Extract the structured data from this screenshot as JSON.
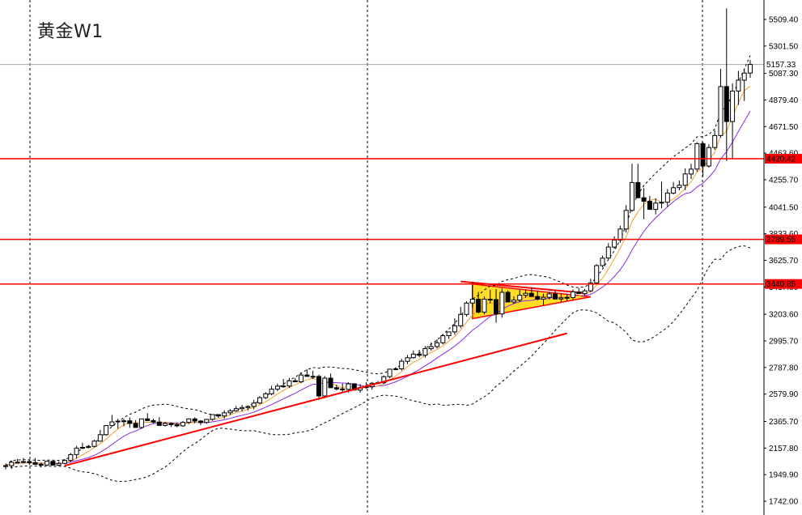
{
  "chart_data": {
    "type": "candlestick",
    "title": "黄金W1",
    "colors": {
      "background": "#ffffff",
      "candle_up_fill": "#ffffff",
      "candle_down_fill": "#000000",
      "candle_outline": "#000000",
      "ma_fast": "#f0a030",
      "ma_slow": "#8a2be2",
      "bollinger": "#000000",
      "horizontal_level": "#ff0000",
      "trendline": "#ff0000",
      "triangle_fill": "#ffd700",
      "current_price_line": "#a0a8b0"
    },
    "y_axis": {
      "ticks": [
        "5509.40",
        "5301.50",
        "5087.30",
        "4879.40",
        "4671.50",
        "4463.60",
        "4255.70",
        "4041.50",
        "3833.60",
        "3625.70",
        "3417.80",
        "3203.60",
        "2995.70",
        "2787.80",
        "2579.90",
        "2365.70",
        "2157.80",
        "1949.90",
        "1742.00"
      ],
      "range": [
        1742.0,
        5509.4
      ]
    },
    "current_price": "5157.33",
    "levels": [
      {
        "price": 4420.42,
        "label": "4420.42"
      },
      {
        "price": 3789.55,
        "label": "3789.55"
      },
      {
        "price": 3440.85,
        "label": "3440.85"
      }
    ],
    "grid": "vertical dashed separators only",
    "candles_ohlc": [
      [
        2018.6,
        2037.2,
        1991.2,
        2020.0
      ],
      [
        2020.0,
        2060.2,
        1994.1,
        2047.1
      ],
      [
        2047.1,
        2071.4,
        2040.7,
        2047.8
      ],
      [
        2047.8,
        2081.2,
        2037.0,
        2052.4
      ],
      [
        2052.4,
        2070.2,
        2026.3,
        2044.1
      ],
      [
        2044.1,
        2080.5,
        2031.5,
        2030.9
      ],
      [
        2030.9,
        2045.5,
        2006.3,
        2025.7
      ],
      [
        2025.7,
        2060.2,
        2018.3,
        2053.9
      ],
      [
        2053.9,
        2055.2,
        2030.4,
        2024.3
      ],
      [
        2024.3,
        2053.8,
        2018.4,
        2037.6
      ],
      [
        2037.6,
        2070.3,
        2030.4,
        2060.7
      ],
      [
        2060.7,
        2119.7,
        2047.9,
        2106.6
      ],
      [
        2106.6,
        2174.6,
        2077.8,
        2157.4
      ],
      [
        2157.4,
        2198.6,
        2150.4,
        2162.8
      ],
      [
        2162.8,
        2181.6,
        2154.7,
        2170.3
      ],
      [
        2170.3,
        2222.4,
        2163.4,
        2211.6
      ],
      [
        2211.6,
        2299.9,
        2208.8,
        2262.3
      ],
      [
        2262.3,
        2337.2,
        2253.6,
        2333.3
      ],
      [
        2333.3,
        2415.7,
        2325.5,
        2362.6
      ],
      [
        2362.6,
        2387.7,
        2310.0,
        2368.7
      ],
      [
        2368.7,
        2386.4,
        2328.1,
        2370.8
      ],
      [
        2370.8,
        2398.6,
        2315.9,
        2350.5
      ],
      [
        2350.5,
        2376.6,
        2326.1,
        2318.7
      ],
      [
        2318.7,
        2386.8,
        2307.0,
        2385.9
      ],
      [
        2385.9,
        2430.8,
        2374.5,
        2372.6
      ],
      [
        2372.6,
        2386.5,
        2351.3,
        2361.2
      ],
      [
        2361.2,
        2399.7,
        2350.4,
        2334.9
      ],
      [
        2334.9,
        2361.1,
        2326.4,
        2350.5
      ],
      [
        2350.5,
        2359.1,
        2322.5,
        2340.8
      ],
      [
        2340.8,
        2358.5,
        2320.5,
        2331.6
      ],
      [
        2331.6,
        2368.1,
        2323.4,
        2359.0
      ],
      [
        2359.0,
        2389.9,
        2345.2,
        2385.9
      ],
      [
        2385.9,
        2398.3,
        2352.2,
        2368.9
      ],
      [
        2368.9,
        2376.6,
        2337.8,
        2357.9
      ],
      [
        2357.9,
        2386.0,
        2347.1,
        2382.1
      ],
      [
        2382.1,
        2422.7,
        2371.5,
        2419.4
      ],
      [
        2419.4,
        2420.0,
        2394.5,
        2408.8
      ],
      [
        2408.8,
        2454.1,
        2386.9,
        2433.5
      ],
      [
        2433.5,
        2462.0,
        2415.9,
        2449.1
      ],
      [
        2449.1,
        2486.1,
        2440.5,
        2465.8
      ],
      [
        2465.8,
        2495.0,
        2443.9,
        2474.5
      ],
      [
        2474.5,
        2486.5,
        2452.0,
        2482.5
      ],
      [
        2482.5,
        2535.5,
        2461.0,
        2509.1
      ],
      [
        2509.1,
        2563.5,
        2500.8,
        2551.6
      ],
      [
        2551.6,
        2595.2,
        2540.4,
        2582.1
      ],
      [
        2582.1,
        2644.5,
        2570.1,
        2618.0
      ],
      [
        2618.0,
        2661.6,
        2603.1,
        2641.6
      ],
      [
        2641.6,
        2698.4,
        2629.9,
        2643.2
      ],
      [
        2643.2,
        2706.7,
        2628.7,
        2684.3
      ],
      [
        2684.3,
        2706.0,
        2673.5,
        2676.3
      ],
      [
        2676.3,
        2749.0,
        2664.2,
        2729.4
      ],
      [
        2729.4,
        2772.7,
        2719.7,
        2718.5
      ],
      [
        2718.5,
        2762.0,
        2696.7,
        2717.6
      ],
      [
        2717.6,
        2731.7,
        2533.1,
        2565.3
      ],
      [
        2565.3,
        2720.9,
        2547.4,
        2704.5
      ],
      [
        2704.5,
        2740.3,
        2642.4,
        2630.0
      ],
      [
        2630.0,
        2652.2,
        2607.7,
        2620.3
      ],
      [
        2620.3,
        2662.1,
        2593.3,
        2616.5
      ],
      [
        2616.5,
        2672.2,
        2591.3,
        2659.9
      ],
      [
        2659.9,
        2665.2,
        2609.0,
        2610.9
      ],
      [
        2610.9,
        2658.3,
        2590.0,
        2630.5
      ],
      [
        2630.5,
        2673.6,
        2620.0,
        2637.0
      ],
      [
        2637.0,
        2674.7,
        2614.6,
        2664.3
      ],
      [
        2664.3,
        2682.2,
        2656.4,
        2668.8
      ],
      [
        2668.8,
        2725.7,
        2657.1,
        2716.0
      ],
      [
        2716.0,
        2774.5,
        2704.2,
        2774.5
      ],
      [
        2774.5,
        2790.1,
        2766.3,
        2777.2
      ],
      [
        2777.2,
        2856.2,
        2763.4,
        2836.6
      ],
      [
        2836.6,
        2885.9,
        2813.6,
        2864.3
      ],
      [
        2864.3,
        2920.1,
        2857.9,
        2892.4
      ],
      [
        2892.4,
        2926.8,
        2868.2,
        2883.6
      ],
      [
        2883.6,
        2955.4,
        2865.8,
        2935.3
      ],
      [
        2935.3,
        2982.1,
        2919.4,
        2951.5
      ],
      [
        2951.5,
        3007.5,
        2936.2,
        2981.3
      ],
      [
        2981.3,
        3047.6,
        2968.6,
        3036.4
      ],
      [
        3036.4,
        3060.1,
        3010.8,
        3065.7
      ],
      [
        3065.7,
        3171.2,
        3043.1,
        3113.4
      ],
      [
        3113.4,
        3262.1,
        3095.8,
        3202.8
      ],
      [
        3202.8,
        3305.5,
        3185.7,
        3291.6
      ],
      [
        3291.6,
        3459.1,
        3254.1,
        3321.8
      ],
      [
        3321.8,
        3377.4,
        3209.5,
        3221.3
      ],
      [
        3221.3,
        3342.5,
        3202.8,
        3321.9
      ],
      [
        3321.9,
        3395.2,
        3289.3,
        3318.6
      ],
      [
        3318.6,
        3400.6,
        3137.3,
        3206.4
      ],
      [
        3206.4,
        3404.5,
        3176.4,
        3375.3
      ],
      [
        3375.3,
        3391.2,
        3325.6,
        3299.8
      ],
      [
        3299.8,
        3342.4,
        3283.8,
        3314.9
      ],
      [
        3314.9,
        3398.1,
        3300.2,
        3352.3
      ],
      [
        3352.3,
        3397.3,
        3332.1,
        3367.8
      ],
      [
        3367.8,
        3413.4,
        3353.9,
        3342.9
      ],
      [
        3342.9,
        3390.7,
        3312.3,
        3323.1
      ],
      [
        3323.1,
        3364.3,
        3270.1,
        3336.6
      ],
      [
        3336.6,
        3378.8,
        3320.6,
        3362.9
      ],
      [
        3362.9,
        3388.8,
        3328.5,
        3323.1
      ],
      [
        3323.1,
        3367.4,
        3301.5,
        3332.0
      ],
      [
        3332.0,
        3366.7,
        3308.4,
        3335.5
      ],
      [
        3335.5,
        3398.3,
        3318.4,
        3378.9
      ],
      [
        3378.9,
        3408.6,
        3365.5,
        3365.6
      ],
      [
        3365.6,
        3401.5,
        3348.7,
        3387.0
      ],
      [
        3387.0,
        3482.4,
        3376.6,
        3449.9
      ],
      [
        3449.9,
        3595.7,
        3438.8,
        3584.7
      ],
      [
        3584.7,
        3662.9,
        3570.4,
        3643.1
      ],
      [
        3643.1,
        3759.6,
        3632.8,
        3729.5
      ],
      [
        3729.5,
        3813.9,
        3716.0,
        3784.9
      ],
      [
        3784.9,
        3895.5,
        3762.9,
        3870.8
      ],
      [
        3870.8,
        4057.8,
        3842.8,
        4016.6
      ],
      [
        4016.6,
        4381.2,
        4006.4,
        4234.3
      ],
      [
        4234.3,
        4381.5,
        4168.4,
        4115.3
      ],
      [
        4115.3,
        4190.1,
        3947.8,
        4087.4
      ],
      [
        4087.4,
        4129.3,
        4024.1,
        4024.0
      ],
      [
        4024.0,
        4110.5,
        3985.7,
        4073.3
      ],
      [
        4073.3,
        4240.2,
        4032.8,
        4079.8
      ],
      [
        4079.8,
        4182.5,
        4043.3,
        4151.6
      ],
      [
        4151.6,
        4238.4,
        4140.0,
        4193.9
      ],
      [
        4193.9,
        4250.0,
        4173.5,
        4212.5
      ],
      [
        4212.5,
        4344.4,
        4174.2,
        4301.1
      ],
      [
        4301.1,
        4381.6,
        4261.4,
        4338.8
      ],
      [
        4338.8,
        4550.1,
        4318.0,
        4537.9
      ],
      [
        4537.9,
        4549.4,
        4279.8,
        4363.4
      ],
      [
        4363.4,
        4532.1,
        4350.2,
        4507.8
      ],
      [
        4507.8,
        4642.5,
        4490.5,
        4601.5
      ],
      [
        4601.5,
        5123.5,
        4584.3,
        4984.8
      ],
      [
        4984.8,
        5595.5,
        4402.8,
        4711.2
      ],
      [
        4711.2,
        5009.7,
        4421.7,
        4949.3
      ],
      [
        4949.3,
        5107.4,
        4840.8,
        5034.4
      ],
      [
        5034.4,
        5125.2,
        4871.2,
        5090.3
      ],
      [
        5090.3,
        5192.3,
        5053.5,
        5157.3
      ]
    ]
  }
}
